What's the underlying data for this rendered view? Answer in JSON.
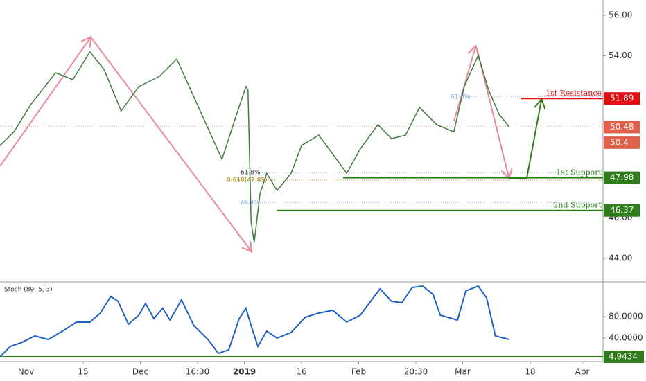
{
  "chart_data": [
    {
      "type": "line",
      "x": [
        0,
        2.7,
        6,
        10.7,
        14,
        17.3,
        20,
        23.3,
        26.7,
        30.7,
        34,
        36.7,
        40,
        42.7,
        45.3,
        47.3,
        47.7,
        48.3,
        48.9,
        50,
        51.3,
        53.3,
        56,
        58,
        61.3,
        63.3,
        66.7,
        69.3,
        72.7,
        75.3,
        78,
        80.7,
        84,
        87.3,
        89.3,
        92,
        94,
        96,
        98
      ],
      "series": [
        {
          "color": "#3f7a3f",
          "values": [
            49.57,
            50.25,
            51.62,
            53.16,
            52.82,
            54.19,
            53.33,
            51.28,
            52.48,
            52.99,
            53.84,
            52.31,
            50.43,
            48.89,
            50.94,
            52.48,
            52.31,
            45.81,
            44.78,
            47.18,
            48.2,
            47.35,
            48.2,
            49.57,
            50.08,
            49.4,
            48.2,
            49.4,
            50.6,
            49.91,
            50.08,
            51.45,
            50.6,
            50.25,
            52.48,
            54.02,
            52.31,
            51.11,
            50.48
          ]
        }
      ],
      "xlim": [
        0,
        116
      ],
      "xticks": [
        {
          "value": 5,
          "label": "Nov"
        },
        {
          "value": 16,
          "label": "15"
        },
        {
          "value": 27,
          "label": "Dec"
        },
        {
          "value": 38,
          "label": "16:30"
        },
        {
          "value": 47,
          "label": "2019"
        },
        {
          "value": 58,
          "label": "16"
        },
        {
          "value": 69,
          "label": "Feb"
        },
        {
          "value": 80,
          "label": "20:30"
        },
        {
          "value": 89,
          "label": "Mar"
        },
        {
          "value": 102,
          "label": "18"
        },
        {
          "value": 112,
          "label": "Apr"
        }
      ],
      "ylim": [
        42.84,
        56.75
      ],
      "yticks": [
        {
          "value": 44,
          "label": "44.00"
        },
        {
          "value": 46,
          "label": "46.00"
        },
        {
          "value": 54,
          "label": "54.00"
        },
        {
          "value": 56,
          "label": "56.00"
        }
      ],
      "levels": [
        {
          "label": "1st Resistance",
          "value": 51.89,
          "color": "#e01010"
        },
        {
          "label": "1st Support",
          "value": 47.98,
          "color": "#2e7d1a"
        },
        {
          "label": "2nd Support",
          "value": 46.37,
          "color": "#2e7d1a"
        }
      ],
      "price_tags": [
        {
          "value": 50.48,
          "color": "#e0604a"
        },
        {
          "value": 50.4,
          "color": "#e0604a"
        }
      ],
      "annotations": [
        "61.8%",
        "0.618(47.85)",
        "76.4%",
        "61.8%"
      ]
    },
    {
      "type": "line",
      "title": "Stoch (89, 5, 3)",
      "x": [
        0,
        2,
        4,
        6.7,
        9.3,
        12,
        14.7,
        17.3,
        19.3,
        21.3,
        22.7,
        24.7,
        26.7,
        28,
        29.6,
        31.3,
        32.7,
        34.9,
        37.3,
        40,
        42,
        44,
        46,
        47.3,
        48.3,
        49.6,
        51.3,
        53.3,
        56,
        58.7,
        61.3,
        64,
        66.7,
        69.3,
        71.3,
        73.1,
        75.3,
        77.3,
        79.3,
        81.3,
        83.3,
        84.7,
        88,
        89.6,
        92,
        93.6,
        95.3,
        98
      ],
      "series": [
        {
          "color": "#1f5fc4",
          "values": [
            5.0,
            24.4,
            30.9,
            43.8,
            37.3,
            52.8,
            69.7,
            69.7,
            86.5,
            117.5,
            108.5,
            65.8,
            82.6,
            104.6,
            76.1,
            95.5,
            73.5,
            111.1,
            63.2,
            37.3,
            11.4,
            17.9,
            76.1,
            95.5,
            63.2,
            24.4,
            52.8,
            39.9,
            50.3,
            78.7,
            86.5,
            91.7,
            69.7,
            82.6,
            108.5,
            131.8,
            108.5,
            105.9,
            134.3,
            136.9,
            121.4,
            82.6,
            73.5,
            127.9,
            136.9,
            114.9,
            43.8,
            37.3
          ]
        }
      ],
      "xlim": [
        0,
        116
      ],
      "ylim": [
        -1.5,
        143.4
      ],
      "yticks": [
        {
          "value": 80,
          "label": "80.0000"
        },
        {
          "value": 40,
          "label": "40.0000"
        }
      ],
      "level": 4.9434,
      "level_color": "#2e7d1a"
    }
  ]
}
